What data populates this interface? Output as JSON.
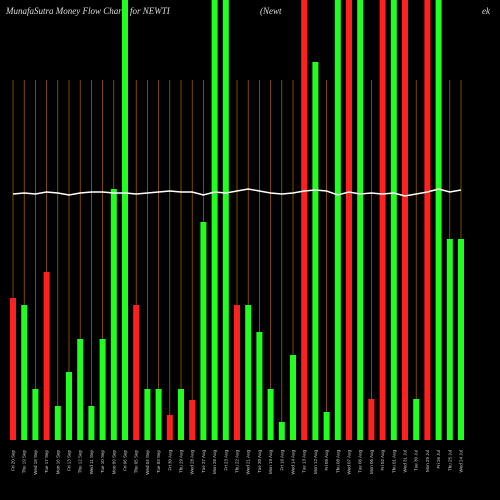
{
  "chart_data": {
    "type": "bar",
    "title": "MunafaSutra  Money Flow  Charts for NEWTI",
    "subtitle": "(Newt",
    "annotation": "ek",
    "categories": [
      "Fri 20 Sep",
      "Thu 19 Sep",
      "Wed 18 Sep",
      "Tue 17 Sep",
      "Mon 16 Sep",
      "Fri 13 Sep",
      "Thu 12 Sep",
      "Wed 11 Sep",
      "Tue 10 Sep",
      "Mon 09 Sep",
      "Fri 06 Sep",
      "Thu 05 Sep",
      "Wed 04 Sep",
      "Tue 03 Sep",
      "Fri 30 Aug",
      "Thu 29 Aug",
      "Wed 28 Aug",
      "Tue 27 Aug",
      "Mon 26 Aug",
      "Fri 23 Aug",
      "Thu 22 Aug",
      "Wed 21 Aug",
      "Tue 20 Aug",
      "Mon 19 Aug",
      "Fri 16 Aug",
      "Wed 14 Aug",
      "Tue 13 Aug",
      "Mon 12 Aug",
      "Fri 09 Aug",
      "Thu 08 Aug",
      "Wed 07 Aug",
      "Tue 06 Aug",
      "Mon 05 Aug",
      "Fri 02 Aug",
      "Thu 01 Aug",
      "Wed 31 Jul",
      "Tue 30 Jul",
      "Mon 29 Jul",
      "Fri 26 Jul",
      "Thu 25 Jul",
      "Wed 24 Jul"
    ],
    "values": [
      142,
      135,
      51,
      168,
      34,
      68,
      101,
      34,
      101,
      251,
      440,
      135,
      51,
      51,
      25,
      51,
      40,
      218,
      440,
      440,
      135,
      135,
      108,
      51,
      18,
      85,
      440,
      378,
      28,
      440,
      440,
      440,
      41,
      440,
      440,
      440,
      41,
      440,
      440,
      201,
      201
    ],
    "colors": [
      "#ff2020",
      "#20ff20",
      "#20ff20",
      "#ff2020",
      "#20ff20",
      "#20ff20",
      "#20ff20",
      "#20ff20",
      "#20ff20",
      "#20ff20",
      "#20ff20",
      "#ff2020",
      "#20ff20",
      "#20ff20",
      "#ff2020",
      "#20ff20",
      "#ff2020",
      "#20ff20",
      "#20ff20",
      "#20ff20",
      "#ff2020",
      "#20ff20",
      "#20ff20",
      "#20ff20",
      "#20ff20",
      "#20ff20",
      "#ff2020",
      "#20ff20",
      "#20ff20",
      "#20ff20",
      "#ff2020",
      "#20ff20",
      "#ff2020",
      "#ff2020",
      "#20ff20",
      "#ff2020",
      "#20ff20",
      "#ff2020",
      "#20ff20",
      "#20ff20",
      "#20ff20"
    ],
    "line_values": [
      246,
      247,
      246,
      248,
      247,
      245,
      247,
      248,
      248,
      247,
      247,
      246,
      247,
      248,
      249,
      248,
      248,
      245,
      248,
      247,
      249,
      251,
      249,
      247,
      246,
      247,
      249,
      250,
      249,
      245,
      248,
      246,
      247,
      246,
      247,
      244,
      246,
      248,
      251,
      248,
      250
    ],
    "ylim": [
      0,
      440
    ]
  }
}
